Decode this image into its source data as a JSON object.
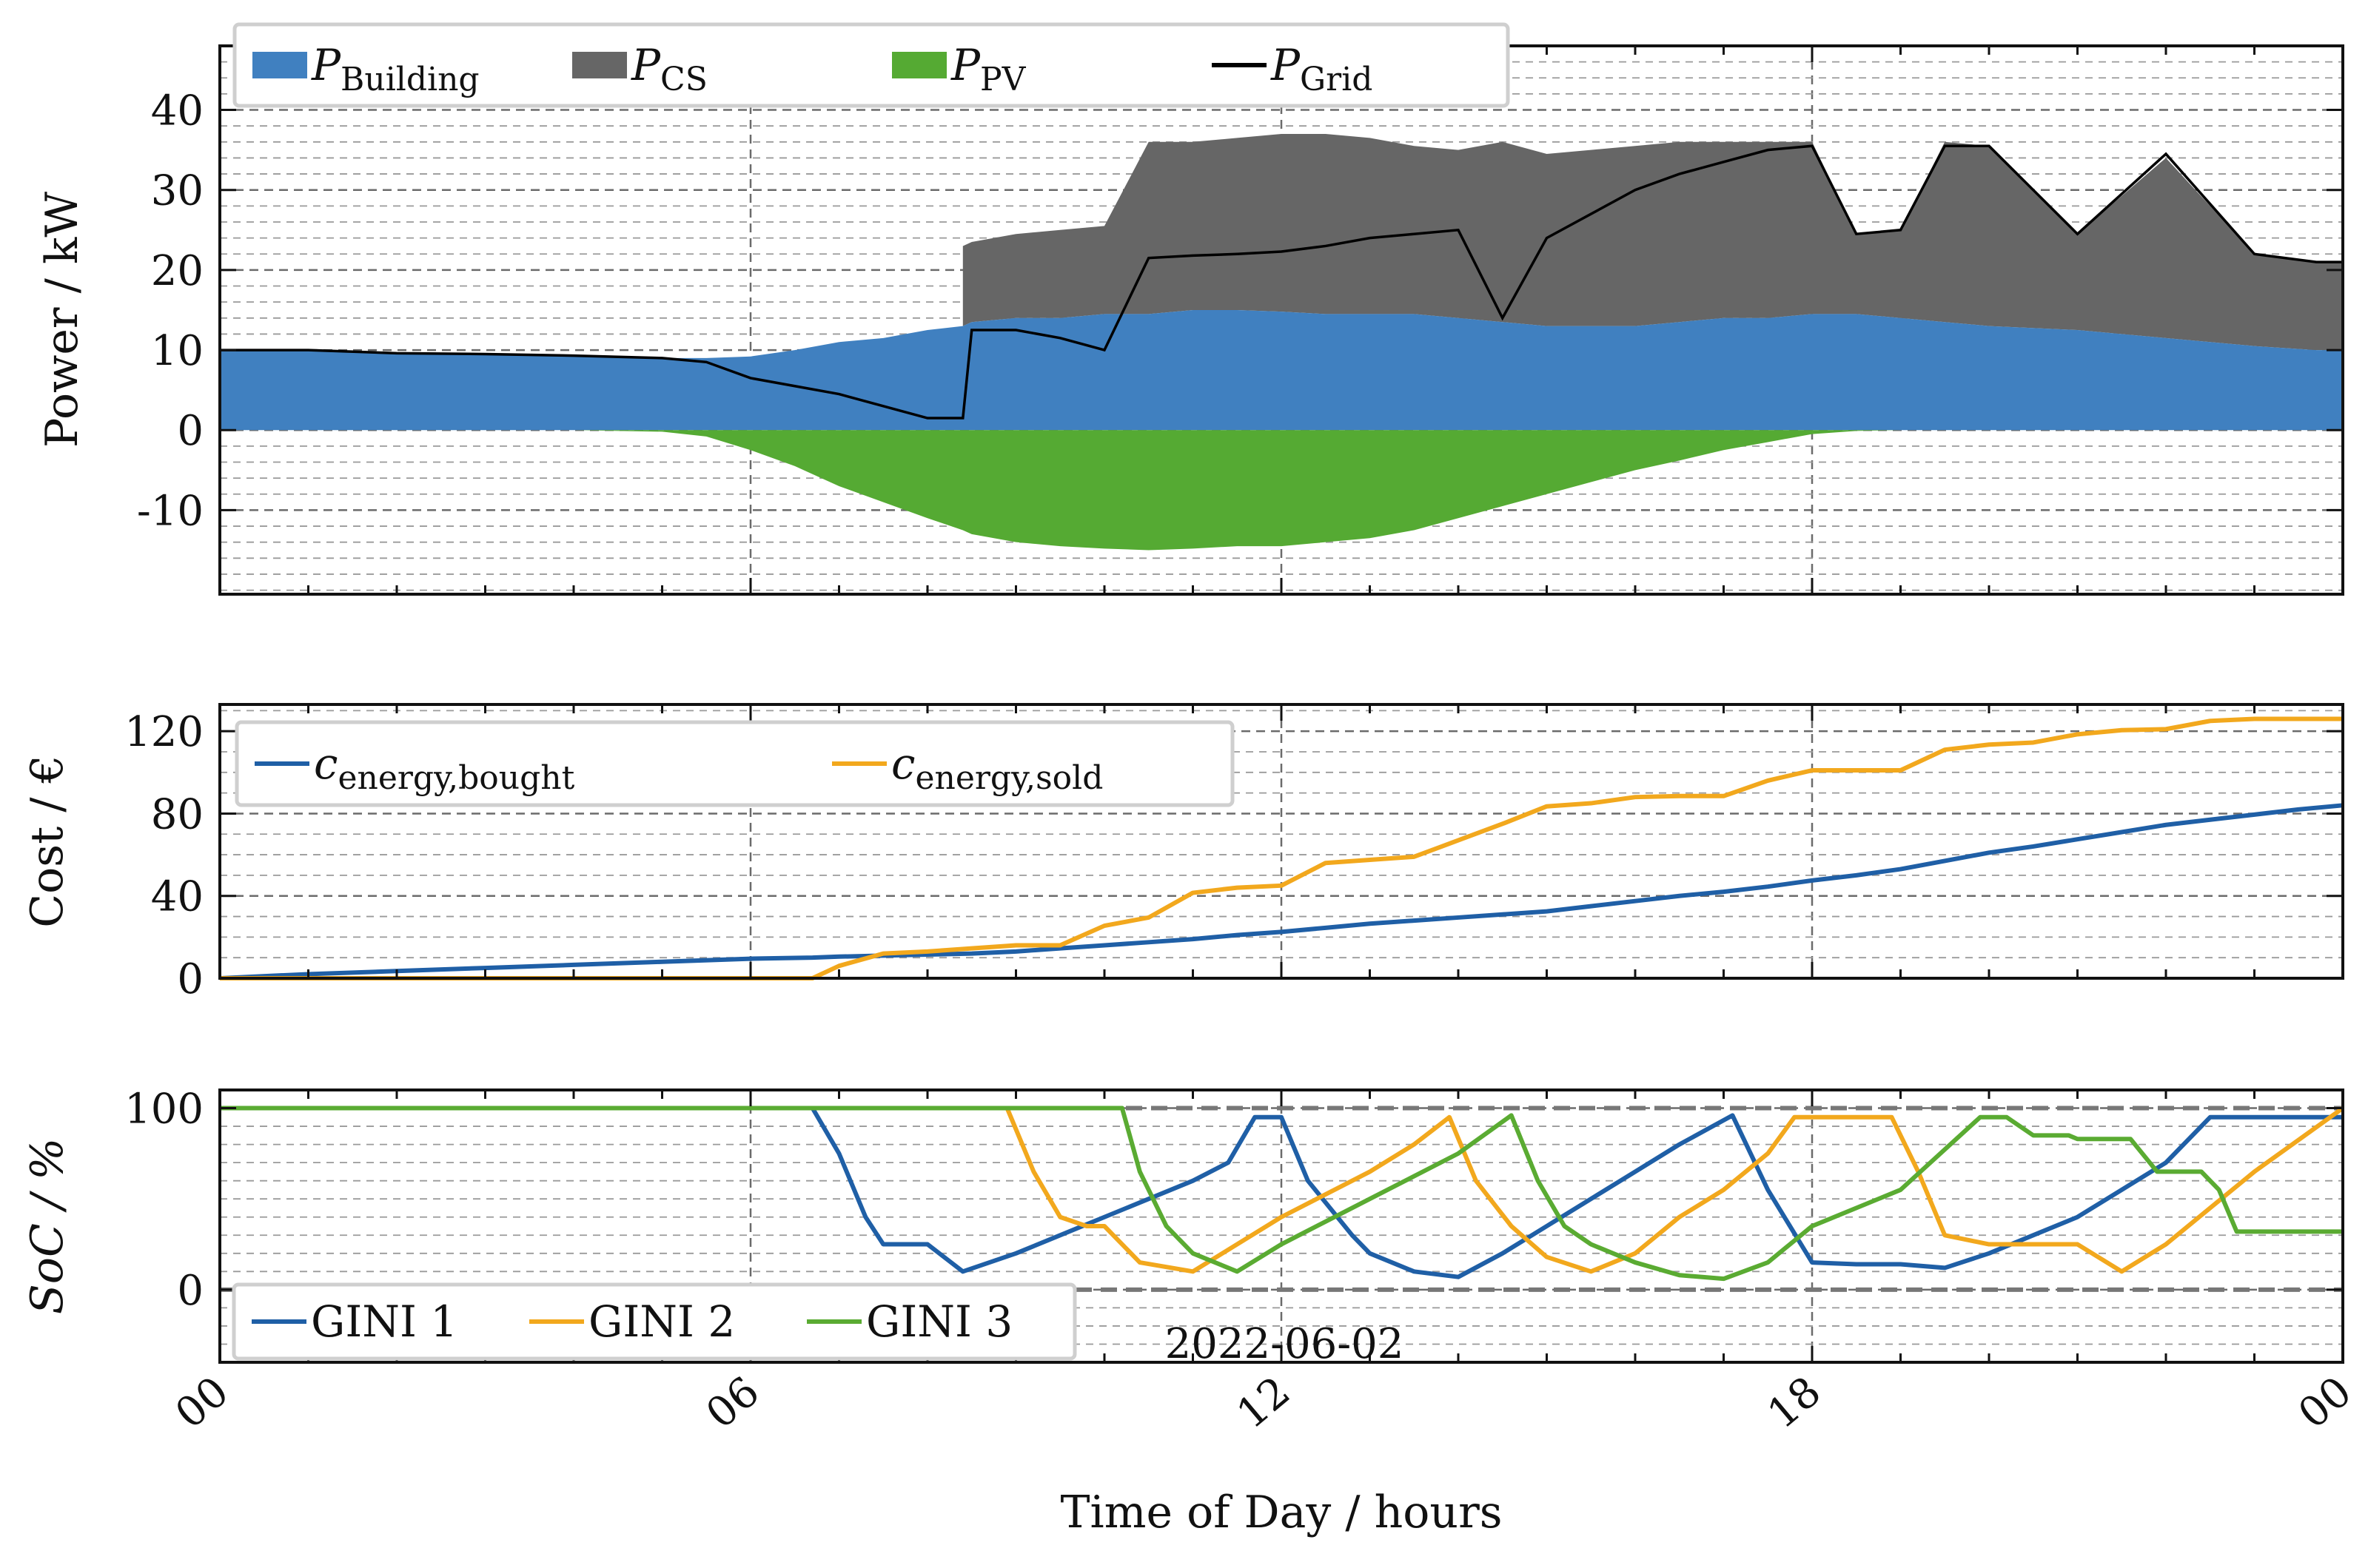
{
  "figure": {
    "date_label": "2022-06-02",
    "x_axis": {
      "label": "Time of Day / hours",
      "ticks": [
        "00",
        "06",
        "12",
        "18",
        "00"
      ],
      "tick_hours": [
        0,
        6,
        12,
        18,
        24
      ],
      "xlim": [
        0,
        24
      ]
    }
  },
  "chart_data": [
    {
      "type": "area",
      "ylabel": "Power / kW",
      "yticks": [
        -10,
        0,
        10,
        20,
        30,
        40
      ],
      "ytick_labels": [
        "-10",
        "0",
        "10",
        "20",
        "30",
        "40"
      ],
      "ylim": [
        -20.5,
        48
      ],
      "grid": true,
      "legend_placement": "top-left",
      "legend": [
        {
          "main": "P",
          "sub": "Building",
          "kind": "patch",
          "color": "#4080c0"
        },
        {
          "main": "P",
          "sub": "CS",
          "kind": "patch",
          "color": "#666666"
        },
        {
          "main": "P",
          "sub": "PV",
          "kind": "patch",
          "color": "#55aa33"
        },
        {
          "main": "P",
          "sub": "Grid",
          "kind": "line",
          "color": "#000000"
        }
      ],
      "x_hours": [
        0,
        1,
        2,
        3,
        4,
        5,
        5.5,
        6,
        6.5,
        7,
        7.5,
        8,
        8.4,
        8.5,
        9,
        9.5,
        10,
        10.5,
        11,
        11.5,
        12,
        12.5,
        13,
        13.5,
        14,
        14.5,
        15,
        15.5,
        16,
        16.5,
        17,
        17.5,
        18,
        18.5,
        19,
        19.5,
        20,
        21,
        22,
        23,
        23.7,
        24
      ],
      "series": [
        {
          "name": "P_Building",
          "color": "#4080c0",
          "values": [
            10,
            10,
            9.6,
            9.5,
            9.3,
            9,
            9,
            9.2,
            10,
            11,
            11.5,
            12.5,
            13,
            13.5,
            14,
            14,
            14.5,
            14.5,
            15,
            15,
            14.8,
            14.5,
            14.5,
            14.5,
            14,
            13.5,
            13,
            13,
            13,
            13.5,
            14,
            14,
            14.5,
            14.5,
            14,
            13.5,
            13,
            12.5,
            11.5,
            10.5,
            10,
            10
          ]
        },
        {
          "name": "P_CS_top",
          "color": "#666666",
          "values": [
            null,
            null,
            null,
            null,
            null,
            null,
            null,
            null,
            null,
            null,
            null,
            null,
            23,
            23.5,
            24.5,
            25,
            25.5,
            36,
            36,
            36.5,
            37,
            37,
            36.5,
            35.5,
            35,
            36,
            34.5,
            35,
            35.5,
            36,
            36,
            36,
            36,
            24.5,
            25,
            36,
            35.5,
            24.5,
            34,
            22,
            21,
            21
          ]
        },
        {
          "name": "P_PV",
          "color": "#55aa33",
          "values": [
            0,
            0,
            0,
            0,
            0,
            -0.2,
            -0.8,
            -2.5,
            -4.5,
            -7,
            -9,
            -11,
            -12.5,
            -13,
            -14,
            -14.5,
            -14.8,
            -15,
            -14.8,
            -14.5,
            -14.5,
            -14,
            -13.5,
            -12.5,
            -11,
            -9.5,
            -8,
            -6.5,
            -5,
            -3.8,
            -2.5,
            -1.5,
            -0.5,
            -0.1,
            0,
            0,
            0,
            0,
            0,
            0,
            0,
            0
          ]
        },
        {
          "name": "P_Grid",
          "color": "#000000",
          "values": [
            10,
            10,
            9.6,
            9.5,
            9.3,
            9,
            8.5,
            6.5,
            5.5,
            4.5,
            3,
            1.5,
            1.5,
            12.5,
            12.5,
            11.5,
            10,
            21.5,
            21.8,
            22,
            22.3,
            23,
            24,
            24.5,
            25,
            14,
            24,
            27,
            30,
            32,
            33.5,
            35,
            35.5,
            24.5,
            25,
            35.5,
            35.5,
            24.5,
            34.5,
            22,
            21,
            21
          ]
        }
      ]
    },
    {
      "type": "line",
      "ylabel": "Cost / €",
      "yticks": [
        0,
        40,
        80,
        120
      ],
      "ytick_labels": [
        "0",
        "40",
        "80",
        "120"
      ],
      "ylim": [
        0,
        133
      ],
      "grid": true,
      "legend_placement": "top-left",
      "legend": [
        {
          "main": "c",
          "sub": "energy,bought",
          "color": "#1f5fa6"
        },
        {
          "main": "c",
          "sub": "energy,sold",
          "color": "#f2a81d"
        }
      ],
      "x_hours": [
        0,
        1,
        2,
        3,
        4,
        5,
        6,
        6.7,
        7,
        7.5,
        8,
        8.5,
        9,
        9.5,
        10,
        10.5,
        11,
        11.5,
        12,
        12.5,
        13,
        13.5,
        14,
        14.5,
        15,
        15.5,
        16,
        16.5,
        17,
        17.5,
        18,
        18.5,
        19,
        19.5,
        20,
        20.5,
        21,
        21.5,
        22,
        22.5,
        23,
        23.5,
        24
      ],
      "series": [
        {
          "name": "c_energy,bought",
          "color": "#1f5fa6",
          "values": [
            0,
            2,
            3.5,
            5,
            6.5,
            8,
            9.5,
            10,
            10.5,
            11,
            11.5,
            12,
            13,
            14.5,
            16,
            17.5,
            19,
            21,
            22.5,
            24.5,
            26.5,
            28,
            29.5,
            31,
            32.5,
            35,
            37.5,
            40,
            42,
            44.5,
            47.5,
            50,
            53,
            57,
            61,
            64,
            67.5,
            71,
            74.5,
            77,
            79.5,
            82,
            84
          ]
        },
        {
          "name": "c_energy,sold",
          "color": "#f2a81d",
          "values": [
            0,
            0,
            0,
            0,
            0,
            0,
            0,
            0,
            6,
            12,
            13,
            14.5,
            16,
            16,
            25.5,
            29.5,
            41.5,
            44,
            45,
            56,
            57.5,
            59,
            67,
            75,
            83.5,
            85,
            88,
            88.5,
            88.5,
            96,
            101,
            101,
            101,
            111,
            113.5,
            114.5,
            118.5,
            120.5,
            121,
            125,
            126,
            126,
            126
          ]
        }
      ]
    },
    {
      "type": "line",
      "ylabel": "SoC / %",
      "yticks": [
        0,
        100
      ],
      "ytick_labels": [
        "0",
        "100"
      ],
      "ylim": [
        -40,
        110
      ],
      "grid": true,
      "legend_placement": "bottom-left",
      "legend": [
        {
          "main": "GINI 1",
          "sub": "",
          "color": "#1f5fa6"
        },
        {
          "main": "GINI 2",
          "sub": "",
          "color": "#f2a81d"
        },
        {
          "main": "GINI 3",
          "sub": "",
          "color": "#5aab32"
        }
      ],
      "series": [
        {
          "name": "GINI 1",
          "color": "#1f5fa6",
          "x": [
            0,
            6.7,
            7.0,
            7.3,
            7.5,
            8.0,
            8.4,
            9.0,
            10.0,
            11.0,
            11.4,
            11.7,
            12.0,
            12.3,
            12.8,
            13.0,
            13.5,
            14.0,
            14.5,
            15.0,
            15.5,
            16.0,
            16.5,
            17.1,
            17.5,
            18.0,
            18.5,
            19.0,
            19.5,
            20.0,
            21.0,
            21.5,
            22.0,
            22.5,
            24
          ],
          "values": [
            100,
            100,
            75,
            40,
            25,
            25,
            10,
            20,
            40,
            60,
            70,
            95,
            95,
            60,
            30,
            20,
            10,
            7,
            20,
            35,
            50,
            65,
            80,
            96,
            55,
            15,
            14,
            14,
            12,
            20,
            40,
            55,
            70,
            95,
            95
          ]
        },
        {
          "name": "GINI 2",
          "color": "#f2a81d",
          "x": [
            0,
            8.9,
            9.2,
            9.5,
            9.8,
            10.0,
            10.4,
            11.0,
            12.0,
            13.0,
            13.5,
            13.9,
            14.2,
            14.6,
            15.0,
            15.5,
            16.0,
            16.5,
            17.0,
            17.5,
            17.8,
            18.5,
            18.9,
            19.2,
            19.5,
            20.0,
            20.5,
            21.0,
            21.5,
            22.0,
            22.5,
            23.0,
            24.0
          ],
          "values": [
            100,
            100,
            65,
            40,
            35,
            35,
            15,
            10,
            40,
            65,
            80,
            95,
            60,
            35,
            18,
            10,
            20,
            40,
            55,
            75,
            95,
            95,
            95,
            65,
            30,
            25,
            25,
            25,
            10,
            25,
            45,
            65,
            100
          ]
        },
        {
          "name": "GINI 3",
          "color": "#5aab32",
          "x": [
            0,
            10.2,
            10.4,
            10.7,
            11.0,
            11.5,
            12.0,
            13.0,
            14.0,
            14.6,
            14.9,
            15.2,
            15.5,
            16.0,
            16.5,
            17.0,
            17.5,
            18.0,
            19.0,
            19.9,
            20.2,
            20.5,
            20.9,
            21.0,
            21.6,
            21.9,
            22.4,
            22.6,
            22.8,
            24.0
          ],
          "values": [
            100,
            100,
            65,
            35,
            20,
            10,
            25,
            50,
            75,
            96,
            60,
            35,
            25,
            15,
            8,
            6,
            15,
            35,
            55,
            95,
            95,
            85,
            85,
            83,
            83,
            65,
            65,
            55,
            32,
            32
          ]
        }
      ]
    }
  ]
}
